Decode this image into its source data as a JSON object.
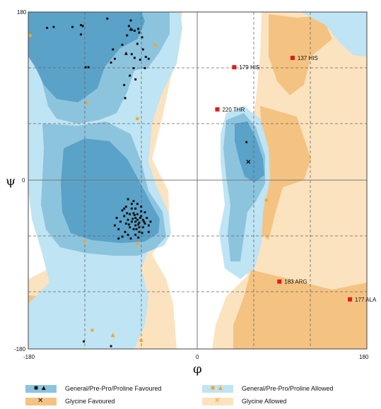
{
  "chart_data": {
    "type": "scatter",
    "title": "",
    "xlabel": "φ",
    "ylabel": "ψ",
    "xlim": [
      -180,
      180
    ],
    "ylim": [
      -180,
      180
    ],
    "x_ticks": [
      "-180",
      "0",
      "180"
    ],
    "y_ticks": [
      "180",
      "0",
      "-180"
    ],
    "grid": "dashed reference lines",
    "colors": {
      "general_allowed": "#bfe4f3",
      "general_favoured": "#8cc4de",
      "general_core": "#5aa2c8",
      "glycine_allowed": "#fbe3bf",
      "glycine_favoured": "#f4c382",
      "outlier": "#e31a1c",
      "allowed_marker": "#f5a623",
      "favoured_marker": "#111111"
    },
    "series": [
      {
        "name": "General/Pre-Pro/Proline Favoured",
        "marker": "square",
        "points": [
          [
            -160,
            163
          ],
          [
            -153,
            164
          ],
          [
            -124,
            166
          ],
          [
            -124,
            156
          ],
          [
            -133,
            164
          ],
          [
            -122,
            165
          ],
          [
            -96,
            173
          ],
          [
            -71,
            171
          ],
          [
            -73,
            165
          ],
          [
            -70,
            161
          ],
          [
            -63,
            162
          ],
          [
            -62,
            158
          ],
          [
            -59,
            153
          ],
          [
            -64,
            146
          ],
          [
            -70,
            135
          ],
          [
            -67,
            131
          ],
          [
            -61,
            129
          ],
          [
            -55,
            132
          ],
          [
            -52,
            130
          ],
          [
            -119,
            121
          ],
          [
            -116,
            121
          ],
          [
            -92,
            126
          ],
          [
            -68,
            120
          ],
          [
            -72,
            112
          ],
          [
            -78,
            102
          ],
          [
            -88,
            130
          ],
          [
            -90,
            140
          ],
          [
            -77,
            88
          ],
          [
            -67,
            160
          ],
          [
            -75,
            155
          ],
          [
            -58,
            140
          ],
          [
            -80,
            145
          ],
          [
            -56,
            120
          ],
          [
            -66,
            108
          ],
          [
            -121,
            -172
          ],
          [
            -92,
            -177
          ],
          [
            52,
            41
          ],
          [
            -70,
            -30
          ],
          [
            -68,
            -35
          ],
          [
            -66,
            -40
          ],
          [
            -64,
            -42
          ],
          [
            -62,
            -45
          ],
          [
            -60,
            -38
          ],
          [
            -58,
            -42
          ],
          [
            -62,
            -50
          ],
          [
            -66,
            -48
          ],
          [
            -70,
            -44
          ],
          [
            -72,
            -36
          ],
          [
            -74,
            -42
          ],
          [
            -60,
            -33
          ],
          [
            -56,
            -46
          ],
          [
            -64,
            -36
          ],
          [
            -68,
            -52
          ],
          [
            -62,
            -55
          ],
          [
            -58,
            -50
          ],
          [
            -54,
            -40
          ],
          [
            -52,
            -48
          ],
          [
            -66,
            -30
          ],
          [
            -72,
            -50
          ],
          [
            -76,
            -46
          ],
          [
            -78,
            -38
          ],
          [
            -60,
            -28
          ],
          [
            -64,
            -25
          ],
          [
            -70,
            -25
          ],
          [
            -56,
            -34
          ],
          [
            -66,
            -58
          ],
          [
            -74,
            -58
          ],
          [
            -80,
            -60
          ],
          [
            -84,
            -52
          ],
          [
            -82,
            -44
          ],
          [
            -86,
            -40
          ],
          [
            -76,
            -28
          ],
          [
            -68,
            -22
          ],
          [
            -80,
            -32
          ],
          [
            -59,
            -56
          ],
          [
            -63,
            -61
          ],
          [
            -71,
            -62
          ],
          [
            -77,
            -55
          ],
          [
            -52,
            -55
          ],
          [
            -50,
            -44
          ],
          [
            -74,
            -20
          ],
          [
            -88,
            -48
          ],
          [
            -84,
            -62
          ],
          [
            -78,
            -30
          ],
          [
            -66,
            -44
          ],
          [
            -61,
            -40
          ],
          [
            -69,
            -41
          ],
          [
            -75,
            -35
          ],
          [
            -57,
            -44
          ],
          [
            -63,
            -47
          ],
          [
            -67,
            -37
          ],
          [
            -73,
            -47
          ],
          [
            -65,
            -52
          ]
        ]
      },
      {
        "name": "General/Pre-Pro/Proline Favoured (triangle)",
        "marker": "triangle",
        "points": [
          [
            -71,
            162
          ],
          [
            -76,
            136
          ]
        ]
      },
      {
        "name": "Glycine Favoured",
        "marker": "cross",
        "points": [
          [
            54,
            20
          ]
        ]
      },
      {
        "name": "General/Pre-Pro/Proline Allowed",
        "marker": "square",
        "points": [
          [
            -178,
            155
          ],
          [
            -118,
            83
          ],
          [
            -64,
            66
          ],
          [
            -45,
            145
          ],
          [
            -64,
            -68
          ],
          [
            -120,
            -65
          ],
          [
            -112,
            -160
          ],
          [
            -60,
            -171
          ],
          [
            73,
            -21
          ]
        ]
      },
      {
        "name": "General/Pre-Pro/Proline Allowed (triangle)",
        "marker": "triangle",
        "points": [
          [
            -90,
            -165
          ]
        ]
      },
      {
        "name": "Outliers",
        "marker": "square",
        "points": [
          {
            "phi": 101,
            "psi": 131,
            "label": "137 HIS"
          },
          {
            "phi": 39,
            "psi": 121,
            "label": "179 HIS"
          },
          {
            "phi": 21,
            "psi": 76,
            "label": "220 THR"
          },
          {
            "phi": 87,
            "psi": -108,
            "label": "183 ARG"
          },
          {
            "phi": 162,
            "psi": -127,
            "label": "177 ALA"
          }
        ]
      }
    ],
    "legend": [
      {
        "label": "General/Pre-Pro/Proline Favoured",
        "swatch": "general_favoured",
        "markers": "■ ▲"
      },
      {
        "label": "General/Pre-Pro/Proline Allowed",
        "swatch": "general_allowed",
        "markers": "■ ▲"
      },
      {
        "label": "Glycine Favoured",
        "swatch": "glycine_favoured",
        "markers": "✕"
      },
      {
        "label": "Glycine Allowed",
        "swatch": "glycine_allowed",
        "markers": "✕"
      }
    ],
    "legend_position": "bottom"
  }
}
